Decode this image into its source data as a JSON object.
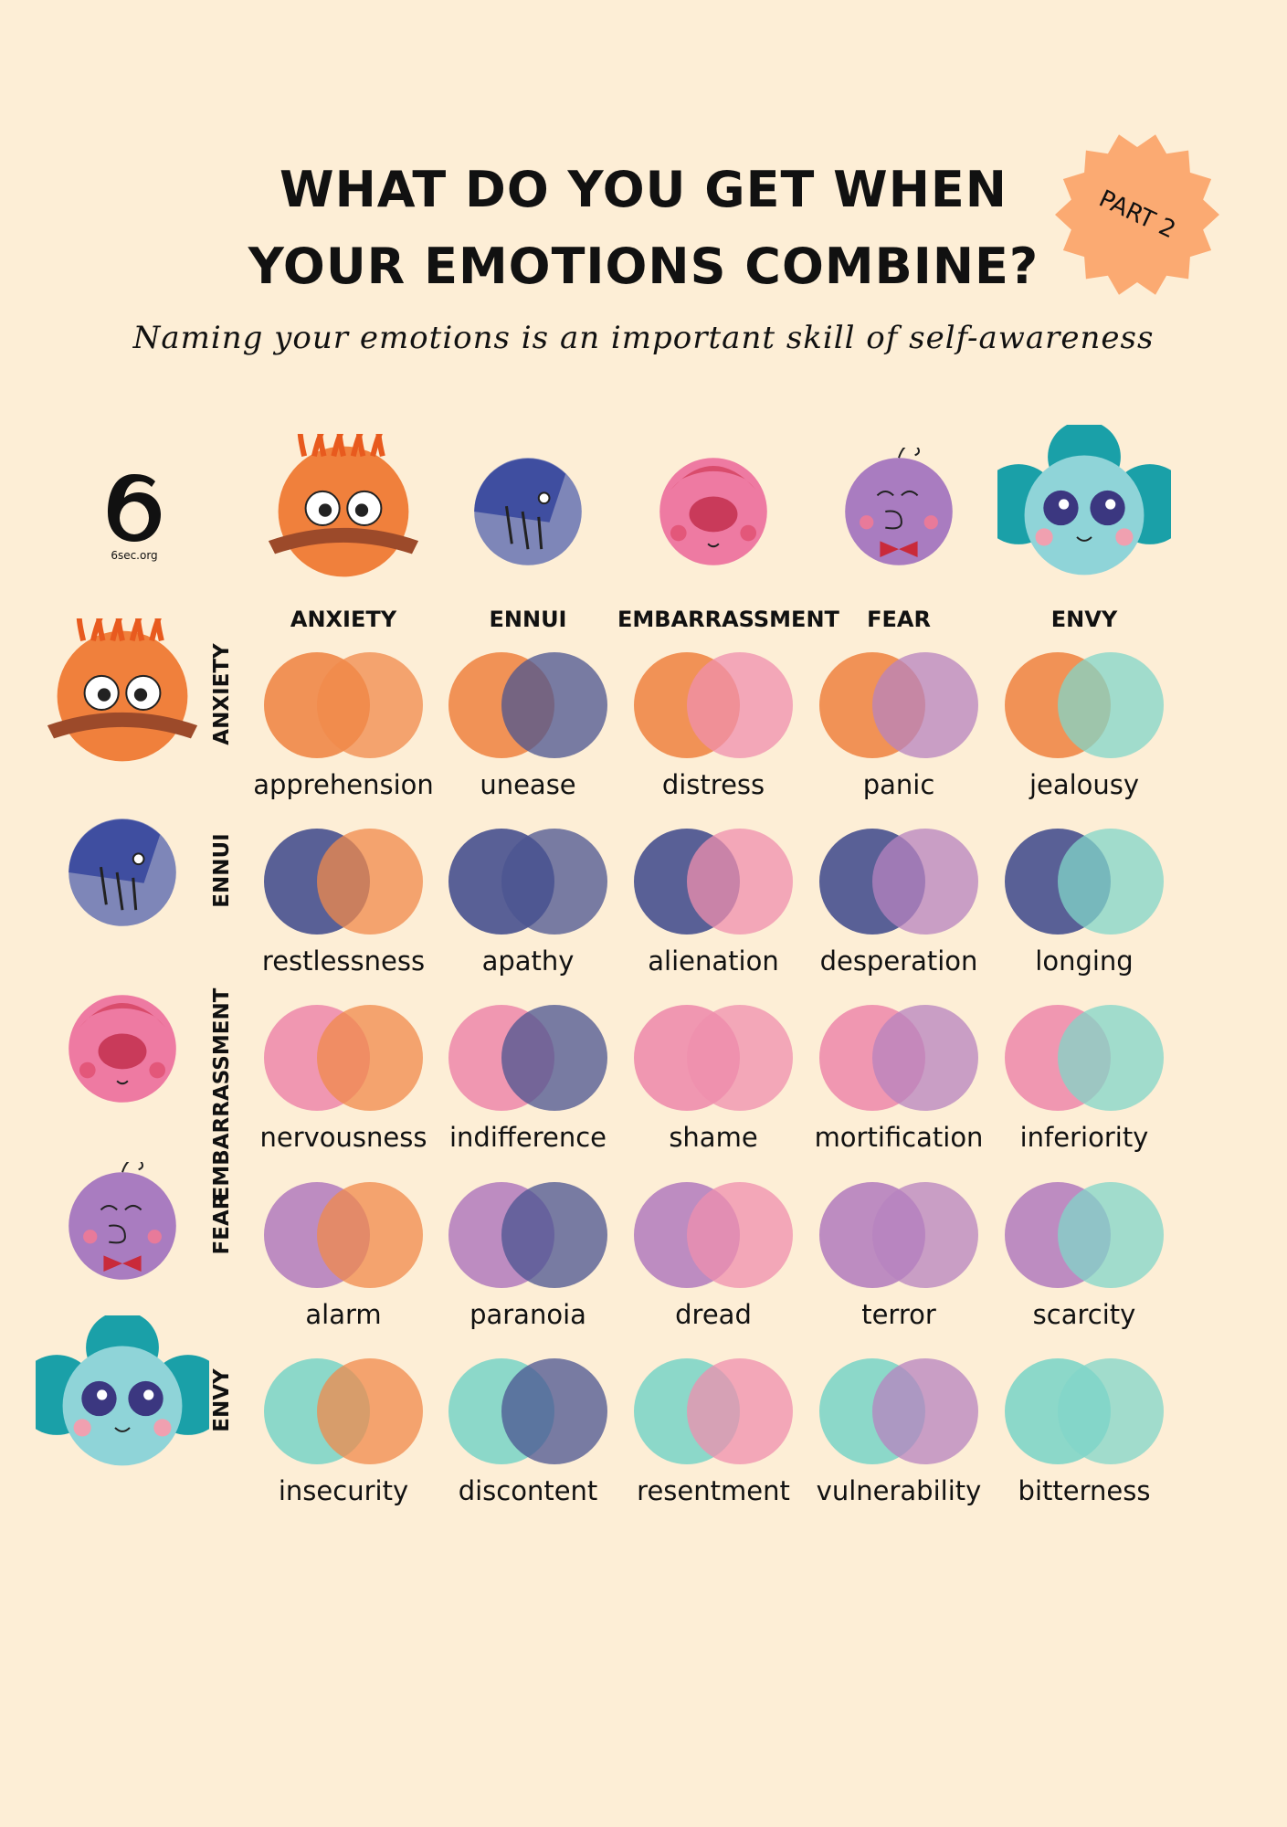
{
  "title_line1": "WHAT DO YOU GET WHEN",
  "title_line2": "YOUR EMOTIONS COMBINE?",
  "badge": "PART 2",
  "subtitle": "Naming your emotions is an important skill of self-awareness",
  "logo_text": "6sec.org",
  "colors": {
    "background": "#fdeed6",
    "badge": "#fbaa72",
    "anxiety": "#f08a4b",
    "ennui": "#4b5490",
    "embarrassment": "#ef8fae",
    "fear": "#b783bf",
    "envy": "#82d6c8"
  },
  "emotions": [
    "ANXIETY",
    "ENNUI",
    "EMBARRASSMENT",
    "FEAR",
    "ENVY"
  ],
  "icons": [
    "anxiety-face-icon",
    "ennui-face-icon",
    "embarrassment-face-icon",
    "fear-face-icon",
    "envy-face-icon"
  ],
  "grid": [
    [
      "apprehension",
      "unease",
      "distress",
      "panic",
      "jealousy"
    ],
    [
      "restlessness",
      "apathy",
      "alienation",
      "desperation",
      "longing"
    ],
    [
      "nervousness",
      "indifference",
      "shame",
      "mortification",
      "inferiority"
    ],
    [
      "alarm",
      "paranoia",
      "dread",
      "terror",
      "scarcity"
    ],
    [
      "insecurity",
      "discontent",
      "resentment",
      "vulnerability",
      "bitterness"
    ]
  ]
}
